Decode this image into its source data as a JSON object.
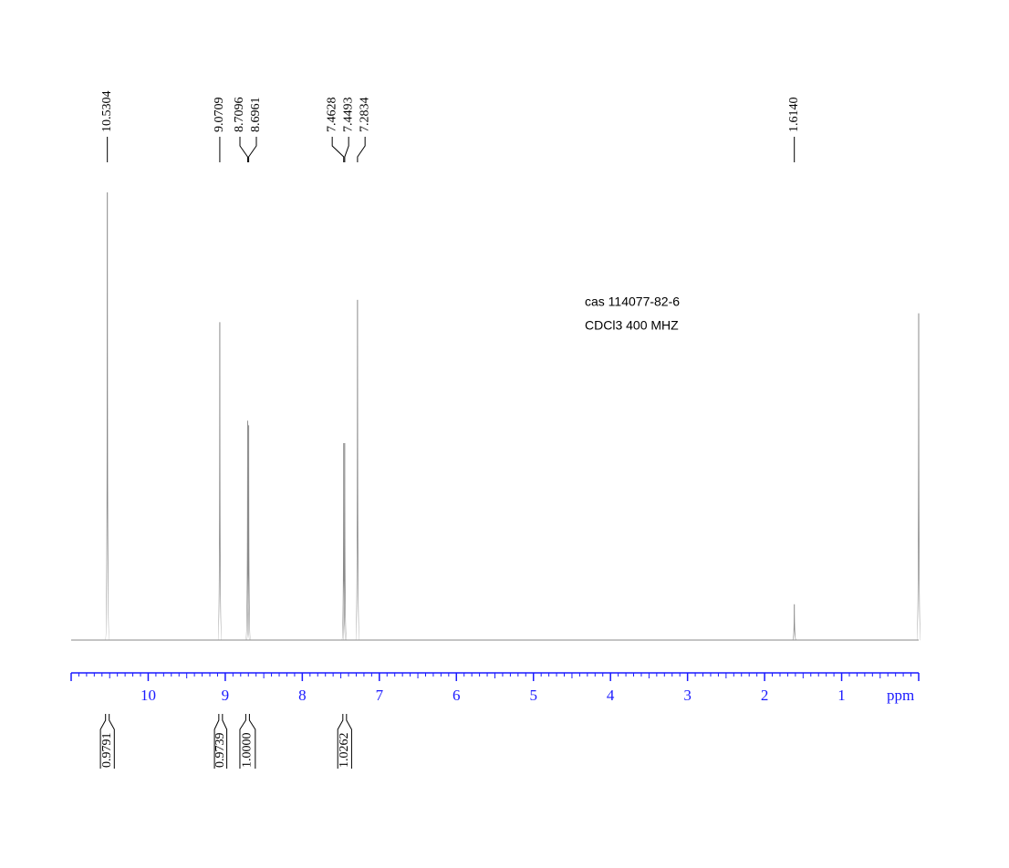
{
  "chart_data": {
    "type": "nmr",
    "x_label": "ppm",
    "xlim": [
      11,
      0
    ],
    "xticks": [
      10,
      9,
      8,
      7,
      6,
      5,
      4,
      3,
      2,
      1
    ],
    "ylim": [
      0,
      100
    ],
    "annotations": [
      "cas 114077-82-6",
      "CDCl3  400 MHZ"
    ],
    "peaks": {
      "ppm": [
        10.5304,
        9.0709,
        8.7096,
        8.6961,
        7.4628,
        7.4493,
        7.2834,
        1.614,
        0
      ],
      "labels": [
        "10.5304",
        "9.0709",
        "8.7096",
        "8.6961",
        "7.4628",
        "7.4493",
        "7.2834",
        "1.6140",
        null
      ],
      "heights": [
        100,
        71,
        49,
        48,
        44,
        44,
        76,
        8,
        73
      ]
    },
    "integrals": {
      "ranges": [
        [
          10.62,
          10.44
        ],
        [
          9.14,
          8.98
        ],
        [
          8.81,
          8.61
        ],
        [
          7.54,
          7.36
        ]
      ],
      "values": [
        0.9791,
        0.9739,
        1,
        1.0262
      ],
      "value_labels": [
        "0.9791",
        "0.9739",
        "1.0000",
        "1.0262"
      ]
    },
    "color": "#8a8a8a",
    "axis_color": "#1a1aff"
  }
}
